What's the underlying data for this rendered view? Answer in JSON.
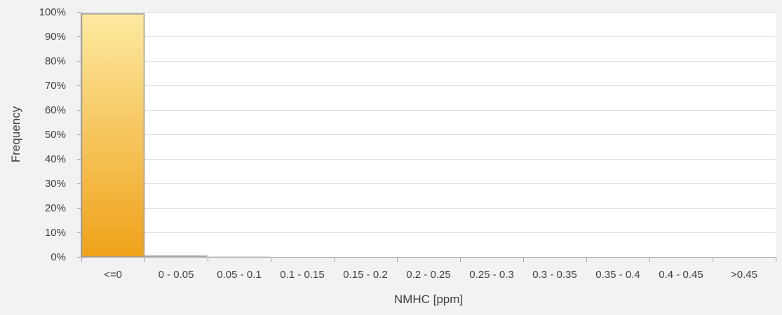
{
  "chart_data": {
    "type": "bar",
    "title": "",
    "xlabel": "NMHC [ppm]",
    "ylabel": "Frequency",
    "categories": [
      "<=0",
      "0 - 0.05",
      "0.05 - 0.1",
      "0.1 - 0.15",
      "0.15 - 0.2",
      "0.2 - 0.25",
      "0.25 - 0.3",
      "0.3 - 0.35",
      "0.35 - 0.4",
      "0.4 - 0.45",
      ">0.45"
    ],
    "values": [
      0.992,
      0.006,
      0.001,
      0,
      0,
      0,
      0,
      0,
      0,
      0,
      0
    ],
    "ylim": [
      0,
      1
    ],
    "yticks": [
      0,
      0.1,
      0.2,
      0.3,
      0.4,
      0.5,
      0.6,
      0.7,
      0.8,
      0.9,
      1.0
    ],
    "ytick_labels": [
      "0%",
      "10%",
      "20%",
      "30%",
      "40%",
      "50%",
      "60%",
      "70%",
      "80%",
      "90%",
      "100%"
    ],
    "grid": true,
    "legend": "none",
    "colors": {
      "bar_top": "#fde9a0",
      "bar_bottom": "#efa21a",
      "bar_stroke": "#9a9a9a",
      "small_bar": "#a6a6a6",
      "grid": "#d9d9d9",
      "axis": "#a6a6a6",
      "plot_bg": "#ffffff",
      "page_bg": "#f2f2f2"
    }
  }
}
